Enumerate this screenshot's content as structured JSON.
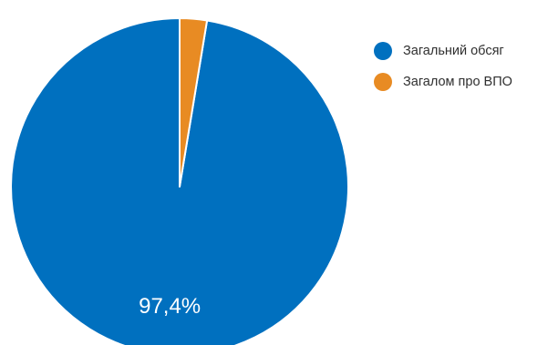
{
  "chart_data": {
    "type": "pie",
    "title": "",
    "start_angle": 0,
    "clockwise": false,
    "legend_position": "right",
    "slices": [
      {
        "label": "Загальний обсяг",
        "value": 97.4,
        "display_label": "97,4%",
        "color": "#0070BF"
      },
      {
        "label": "Загалом про ВПО",
        "value": 2.6,
        "display_label": "",
        "color": "#E88B23"
      }
    ]
  }
}
